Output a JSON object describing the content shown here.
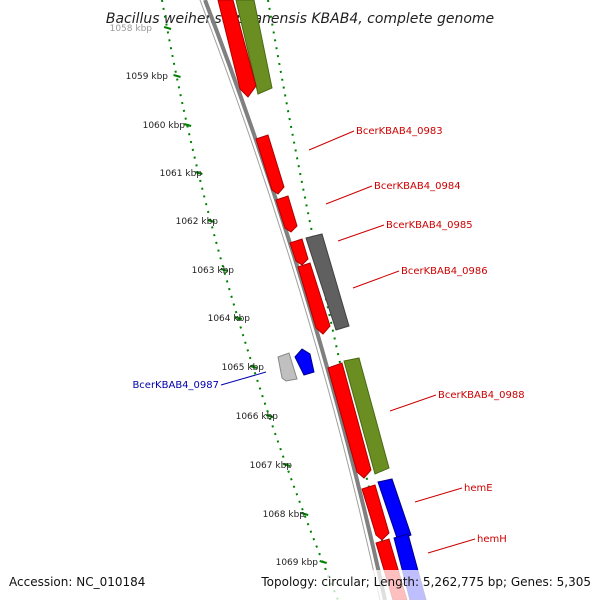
{
  "title": "Bacillus weihenstephanensis KBAB4, complete genome",
  "footer": {
    "accession": "Accession: NC_010184",
    "topology": "Topology: circular; Length: 5,262,775 bp; Genes: 5,305"
  },
  "ticks": [
    "1058 kbp",
    "1059 kbp",
    "1060 kbp",
    "1061 kbp",
    "1062 kbp",
    "1063 kbp",
    "1064 kbp",
    "1065 kbp",
    "1066 kbp",
    "1067 kbp",
    "1068 kbp",
    "1069 kbp"
  ],
  "gene_labels": [
    {
      "text": "BcerKBAB4_0983",
      "color": "#cc0000"
    },
    {
      "text": "BcerKBAB4_0984",
      "color": "#cc0000"
    },
    {
      "text": "BcerKBAB4_0985",
      "color": "#cc0000"
    },
    {
      "text": "BcerKBAB4_0986",
      "color": "#cc0000"
    },
    {
      "text": "BcerKBAB4_0987",
      "color": "#0000aa"
    },
    {
      "text": "BcerKBAB4_0988",
      "color": "#cc0000"
    },
    {
      "text": "hemE",
      "color": "#cc0000"
    },
    {
      "text": "hemH",
      "color": "#cc0000"
    }
  ],
  "colors": {
    "cds": "#ff0000",
    "rrna": "#6b8e23",
    "pseudo": "#606060",
    "reverse": "#0000ff",
    "tick": "#008000",
    "backbone": "#808080"
  }
}
